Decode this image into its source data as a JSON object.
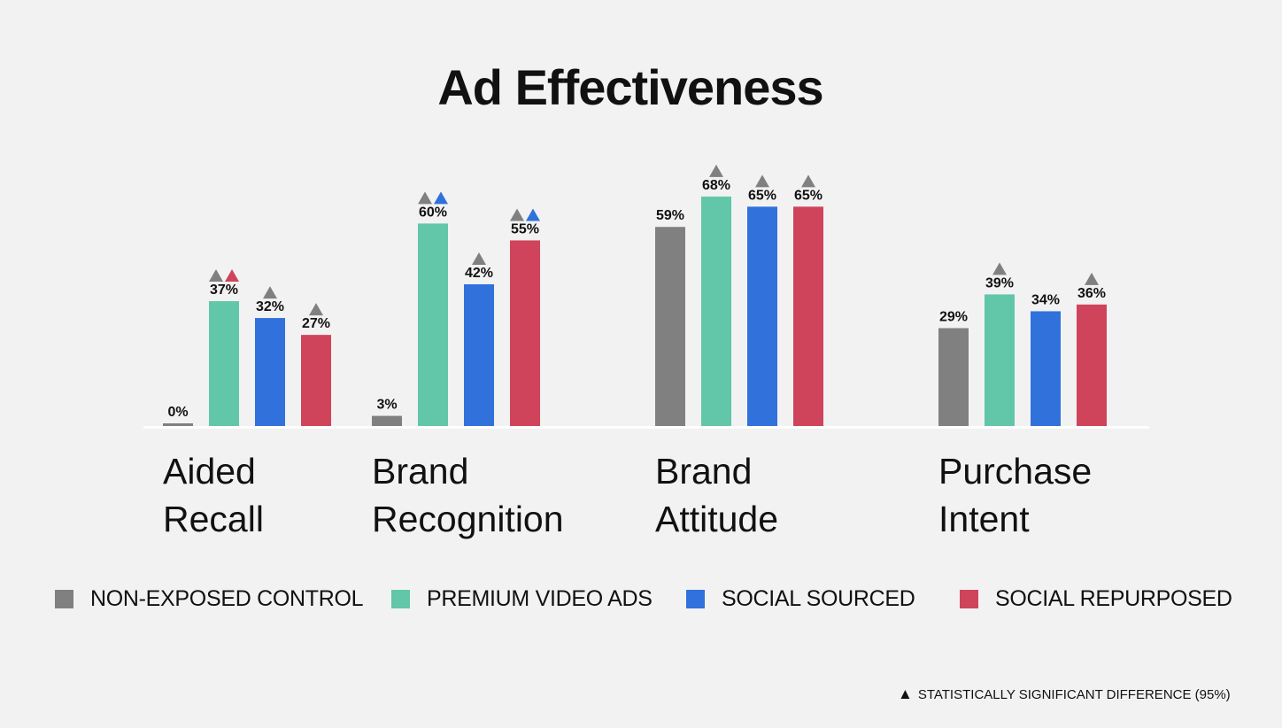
{
  "title": "Ad Effectiveness",
  "chart_data": {
    "type": "bar",
    "title": "Ad Effectiveness",
    "categories": [
      [
        "Aided",
        "Recall"
      ],
      [
        "Brand",
        "Recognition"
      ],
      [
        "Brand",
        "Attitude"
      ],
      [
        "Purchase",
        "Intent"
      ]
    ],
    "series": [
      {
        "name": "NON-EXPOSED CONTROL",
        "color": "#808080",
        "values": [
          0,
          3,
          59,
          29
        ]
      },
      {
        "name": "PREMIUM VIDEO ADS",
        "color": "#62c6a9",
        "values": [
          37,
          60,
          68,
          39
        ]
      },
      {
        "name": "SOCIAL SOURCED",
        "color": "#3071dc",
        "values": [
          32,
          42,
          65,
          34
        ]
      },
      {
        "name": "SOCIAL REPURPOSED",
        "color": "#cf445a",
        "values": [
          27,
          55,
          65,
          36
        ]
      }
    ],
    "value_suffix": "%",
    "ylim": [
      0,
      100
    ],
    "significance_markers": [
      [
        [],
        [
          "#808080",
          "#cf445a"
        ],
        [
          "#808080"
        ],
        [
          "#808080"
        ]
      ],
      [
        [],
        [
          "#808080",
          "#3071dc"
        ],
        [
          "#808080"
        ],
        [
          "#808080",
          "#3071dc"
        ]
      ],
      [
        [],
        [
          "#808080"
        ],
        [
          "#808080"
        ],
        [
          "#808080"
        ]
      ],
      [
        [],
        [
          "#808080"
        ],
        [],
        [
          "#808080"
        ]
      ]
    ],
    "grid": false,
    "legend_position": "bottom"
  },
  "footnote": {
    "icon": "black-triangle-icon",
    "text": "STATISTICALLY SIGNIFICANT DIFFERENCE (95%)"
  }
}
